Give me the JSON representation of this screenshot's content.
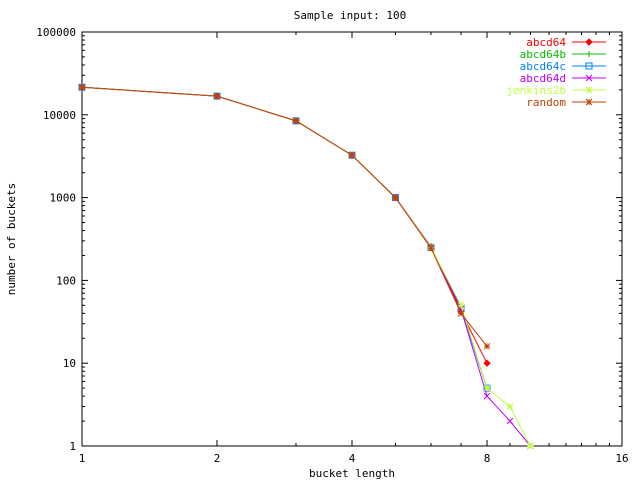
{
  "chart_data": {
    "type": "line",
    "title": "Sample input: 100",
    "xlabel": "bucket length",
    "ylabel": "number of buckets",
    "x_scale": "log2",
    "y_scale": "log10",
    "xlim": [
      1,
      16
    ],
    "ylim": [
      1,
      100000
    ],
    "x_ticks": [
      {
        "value": 1,
        "label": "1"
      },
      {
        "value": 2,
        "label": "2"
      },
      {
        "value": 4,
        "label": "4"
      },
      {
        "value": 8,
        "label": "8"
      },
      {
        "value": 16,
        "label": "16"
      }
    ],
    "y_ticks": [
      {
        "value": 1,
        "label": "1"
      },
      {
        "value": 10,
        "label": "10"
      },
      {
        "value": 100,
        "label": "100"
      },
      {
        "value": 1000,
        "label": "1000"
      },
      {
        "value": 10000,
        "label": "10000"
      },
      {
        "value": 100000,
        "label": "100000"
      }
    ],
    "grid": false,
    "legend_position": "top-right",
    "series": [
      {
        "name": "abcd64",
        "color": "#ff0000",
        "marker": "diamond",
        "x": [
          1,
          2,
          3,
          4,
          5,
          6,
          7,
          8
        ],
        "y": [
          21500,
          16800,
          8450,
          3250,
          1000,
          255,
          42,
          10
        ]
      },
      {
        "name": "abcd64b",
        "color": "#00c000",
        "marker": "plus",
        "x": [
          1,
          2,
          3,
          4,
          5,
          6,
          7,
          8
        ],
        "y": [
          21500,
          16800,
          8450,
          3250,
          1000,
          250,
          48,
          5
        ]
      },
      {
        "name": "abcd64c",
        "color": "#0080ff",
        "marker": "square",
        "x": [
          1,
          2,
          3,
          4,
          5,
          6,
          7,
          8
        ],
        "y": [
          21500,
          16800,
          8450,
          3250,
          1000,
          250,
          46,
          5
        ]
      },
      {
        "name": "abcd64d",
        "color": "#c000ff",
        "marker": "x",
        "x": [
          1,
          2,
          3,
          4,
          5,
          6,
          7,
          8,
          9,
          10
        ],
        "y": [
          21500,
          16800,
          8450,
          3250,
          1000,
          250,
          45,
          4,
          2,
          1
        ]
      },
      {
        "name": "jenkins2b",
        "color": "#c0ff40",
        "marker": "star",
        "x": [
          1,
          2,
          3,
          4,
          5,
          6,
          7,
          8,
          9,
          10
        ],
        "y": [
          21500,
          16800,
          8450,
          3250,
          1000,
          250,
          50,
          5,
          3,
          1
        ]
      },
      {
        "name": "random",
        "color": "#c04000",
        "marker": "star",
        "x": [
          1,
          2,
          3,
          4,
          5,
          6,
          7,
          8
        ],
        "y": [
          21500,
          16800,
          8450,
          3250,
          1000,
          245,
          40,
          16
        ]
      }
    ]
  }
}
